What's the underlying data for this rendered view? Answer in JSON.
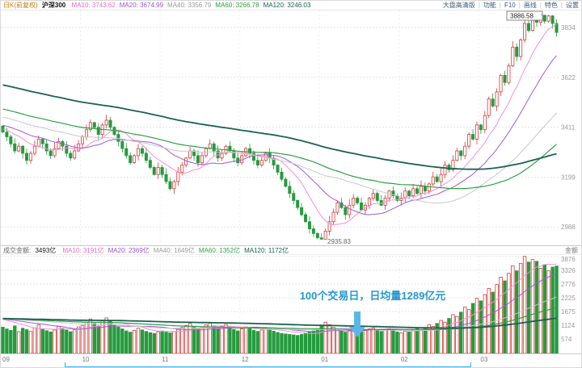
{
  "header": {
    "period_label": "日K(前复权)",
    "symbol": "沪深300",
    "price_mas": [
      {
        "label": "MA10: 3743.62",
        "color": "#e86ac0"
      },
      {
        "label": "MA20: 3674.99",
        "color": "#9a56cc"
      },
      {
        "label": "MA40: 3356.79",
        "color": "#999999"
      },
      {
        "label": "MA60: 3266.78",
        "color": "#2f9e44"
      },
      {
        "label": "MA120: 3246.03",
        "color": "#1b6152"
      }
    ],
    "menu_items": [
      "大盘高清版",
      "功能",
      "F10",
      "画线",
      "特色",
      "设置"
    ]
  },
  "volume_header": {
    "label": "成交金额:",
    "value": "3493亿",
    "mas": [
      {
        "label": "MA10: 3191亿",
        "color": "#e86ac0"
      },
      {
        "label": "MA20: 2369亿",
        "color": "#9a56cc"
      },
      {
        "label": "MA40: 1649亿",
        "color": "#999999"
      },
      {
        "label": "MA60: 1352亿",
        "color": "#2f9e44"
      },
      {
        "label": "MA120: 1172亿",
        "color": "#1b6152"
      }
    ],
    "right_label": "金额"
  },
  "annotations": {
    "high_label": "3886.58",
    "low_label": "2935.83",
    "note_text": "100个交易日，日均量1289亿元",
    "avg_daily_volume": 1289
  },
  "axes": {
    "price_ticks": [
      3834,
      3622,
      3411,
      3199,
      2988
    ],
    "volume_ticks": [
      3876,
      3326,
      2776,
      2225,
      1675,
      1124,
      574
    ],
    "months": [
      {
        "label": "09",
        "index": 0
      },
      {
        "label": "10",
        "index": 20
      },
      {
        "label": "11",
        "index": 40
      },
      {
        "label": "12",
        "index": 60
      },
      {
        "label": "01",
        "index": 80
      },
      {
        "label": "02",
        "index": 100
      },
      {
        "label": "03",
        "index": 120
      }
    ]
  },
  "colors": {
    "up": "#d43a3a",
    "down": "#259b3e",
    "grid": "#e4e4e4",
    "axis_text": "#999999",
    "note_blue": "#2597d0",
    "arrow_blue": "#5ab6e8",
    "bracket_blue": "#45aee3"
  },
  "chart_data": {
    "type": "candlestick+volume",
    "title": "沪深300 日K(前复权)",
    "price": {
      "high": 3886.58,
      "low": 2935.83,
      "ylim": [
        2910,
        3905
      ],
      "ma_colors": {
        "ma10": "#f78fd2",
        "ma20": "#a05ad6",
        "ma40": "#c8c8c8",
        "ma60": "#2f9e44",
        "ma120": "#1b6152"
      },
      "closes": [
        3390,
        3370,
        3340,
        3310,
        3330,
        3300,
        3270,
        3300,
        3330,
        3360,
        3340,
        3310,
        3290,
        3320,
        3350,
        3330,
        3300,
        3280,
        3310,
        3340,
        3370,
        3400,
        3430,
        3410,
        3380,
        3420,
        3440,
        3410,
        3380,
        3350,
        3320,
        3290,
        3260,
        3290,
        3320,
        3300,
        3270,
        3240,
        3210,
        3240,
        3210,
        3180,
        3150,
        3180,
        3220,
        3250,
        3280,
        3310,
        3290,
        3260,
        3290,
        3320,
        3340,
        3310,
        3280,
        3300,
        3330,
        3310,
        3280,
        3260,
        3290,
        3320,
        3300,
        3270,
        3250,
        3270,
        3300,
        3280,
        3250,
        3220,
        3190,
        3160,
        3130,
        3100,
        3070,
        3040,
        3010,
        2980,
        2960,
        2942,
        2936,
        2970,
        3010,
        3050,
        3090,
        3070,
        3040,
        3080,
        3110,
        3090,
        3060,
        3080,
        3110,
        3130,
        3100,
        3080,
        3110,
        3140,
        3120,
        3100,
        3110,
        3140,
        3120,
        3150,
        3130,
        3160,
        3140,
        3170,
        3200,
        3180,
        3210,
        3250,
        3230,
        3270,
        3310,
        3290,
        3330,
        3380,
        3360,
        3420,
        3400,
        3460,
        3530,
        3500,
        3560,
        3630,
        3600,
        3670,
        3750,
        3710,
        3780,
        3850,
        3820,
        3875,
        3855,
        3885,
        3860,
        3882,
        3850,
        3812
      ]
    },
    "volume": {
      "unit": "亿元",
      "ylim": [
        0,
        3900
      ],
      "values": [
        1050,
        980,
        920,
        1100,
        870,
        1010,
        950,
        880,
        1020,
        1150,
        990,
        910,
        860,
        940,
        1080,
        1000,
        930,
        870,
        950,
        1060,
        1120,
        1250,
        1380,
        1200,
        1100,
        1300,
        1420,
        1280,
        1150,
        1050,
        980,
        900,
        850,
        920,
        1010,
        940,
        880,
        830,
        800,
        870,
        900,
        850,
        820,
        880,
        960,
        1040,
        1120,
        1200,
        1080,
        990,
        1060,
        1140,
        1220,
        1100,
        1000,
        1080,
        1160,
        1060,
        960,
        900,
        980,
        1060,
        990,
        920,
        880,
        940,
        1020,
        950,
        890,
        840,
        800,
        780,
        760,
        740,
        720,
        760,
        820,
        860,
        900,
        960,
        1100,
        1250,
        1150,
        1050,
        980,
        900,
        850,
        920,
        1000,
        930,
        870,
        910,
        980,
        1020,
        940,
        880,
        930,
        990,
        920,
        860,
        820,
        900,
        860,
        940,
        1000,
        950,
        1040,
        1150,
        1080,
        1200,
        1320,
        1250,
        1400,
        1550,
        1480,
        1650,
        1850,
        1750,
        2000,
        2200,
        2100,
        2350,
        2600,
        2450,
        2750,
        3050,
        2900,
        3200,
        3500,
        3300,
        3600,
        3876,
        3650,
        3750,
        3680,
        3400,
        3550,
        3300,
        3450,
        3493
      ]
    },
    "x_month_start_indices": [
      0,
      20,
      40,
      60,
      80,
      100,
      120
    ],
    "selection": {
      "start_index": 16,
      "end_index": 118,
      "trading_days": 100
    }
  }
}
